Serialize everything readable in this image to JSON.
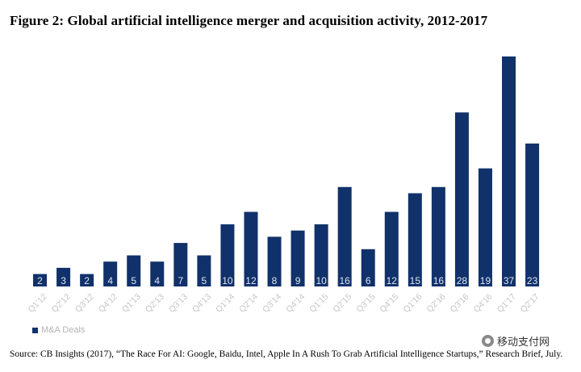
{
  "title": "Figure 2: Global artificial intelligence merger and acquisition activity, 2012-2017",
  "colors": {
    "bar": "#11316a",
    "bar_label": "#dfe6f2",
    "tick": "#c6c6c6"
  },
  "chart_data": {
    "type": "bar",
    "categories": [
      "Q1'12",
      "Q2'12",
      "Q3'12",
      "Q4'12",
      "Q1'13",
      "Q2'13",
      "Q3'13",
      "Q4'13",
      "Q1'14",
      "Q2'14",
      "Q3'14",
      "Q4'14",
      "Q1'15",
      "Q2'15",
      "Q3'15",
      "Q4'15",
      "Q1'16",
      "Q2'16",
      "Q3'16",
      "Q4'16",
      "Q1'17",
      "Q2'17"
    ],
    "series": [
      {
        "name": "M&A Deals",
        "values": [
          2,
          3,
          2,
          4,
          5,
          4,
          7,
          5,
          10,
          12,
          8,
          9,
          10,
          16,
          6,
          12,
          15,
          16,
          28,
          19,
          37,
          23
        ]
      }
    ],
    "ylim": [
      0,
      37
    ],
    "legend_position": "bottom-left",
    "grid": false
  },
  "source": "Source: CB Insights (2017), “The Race For AI: Google, Baidu, Intel, Apple In A Rush To Grab Artificial Intelligence Startups,” Research Brief, July.",
  "watermark": "移动支付网"
}
